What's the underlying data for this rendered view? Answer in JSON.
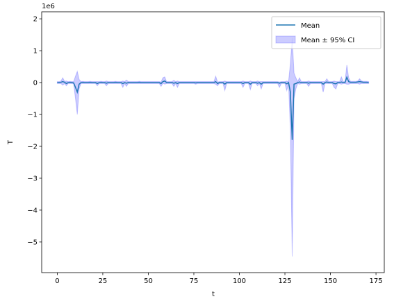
{
  "chart_data": {
    "type": "line",
    "x_label": "t",
    "y_label": "T",
    "y_offset_label": "1e6",
    "xlim": [
      -8.55,
      179.55
    ],
    "ylim": [
      -5.96,
      2.22
    ],
    "xticks": [
      0,
      25,
      50,
      75,
      100,
      125,
      150,
      175
    ],
    "yticks": [
      {
        "value": -5,
        "label": "−5"
      },
      {
        "value": -4,
        "label": "−4"
      },
      {
        "value": -3,
        "label": "−3"
      },
      {
        "value": -2,
        "label": "−2"
      },
      {
        "value": -1,
        "label": "−1"
      },
      0,
      1,
      2
    ],
    "legend": "upper right",
    "x": [
      0,
      1,
      2,
      3,
      4,
      5,
      6,
      7,
      8,
      9,
      10,
      11,
      12,
      13,
      14,
      15,
      16,
      17,
      18,
      19,
      20,
      21,
      22,
      23,
      24,
      25,
      26,
      27,
      28,
      29,
      30,
      31,
      32,
      33,
      34,
      35,
      36,
      37,
      38,
      39,
      40,
      41,
      42,
      43,
      44,
      45,
      46,
      47,
      48,
      49,
      50,
      51,
      52,
      53,
      54,
      55,
      56,
      57,
      58,
      59,
      60,
      61,
      62,
      63,
      64,
      65,
      66,
      67,
      68,
      69,
      70,
      71,
      72,
      73,
      74,
      75,
      76,
      77,
      78,
      79,
      80,
      81,
      82,
      83,
      84,
      85,
      86,
      87,
      88,
      89,
      90,
      91,
      92,
      93,
      94,
      95,
      96,
      97,
      98,
      99,
      100,
      101,
      102,
      103,
      104,
      105,
      106,
      107,
      108,
      109,
      110,
      111,
      112,
      113,
      114,
      115,
      116,
      117,
      118,
      119,
      120,
      121,
      122,
      123,
      124,
      125,
      126,
      127,
      128,
      129,
      130,
      131,
      132,
      133,
      134,
      135,
      136,
      137,
      138,
      139,
      140,
      141,
      142,
      143,
      144,
      145,
      146,
      147,
      148,
      149,
      150,
      151,
      152,
      153,
      154,
      155,
      156,
      157,
      158,
      159,
      160,
      161,
      162,
      163,
      164,
      165,
      166,
      167,
      168,
      169,
      170,
      171
    ],
    "series": [
      {
        "name": "Mean",
        "color": "#1f77b4",
        "values": [
          0,
          0,
          0.01,
          0.03,
          0.01,
          -0.03,
          0,
          0.01,
          0,
          -0.01,
          -0.15,
          -0.3,
          -0.05,
          0,
          0.01,
          0,
          0,
          0,
          0.01,
          0,
          0,
          0,
          -0.03,
          0,
          0.01,
          0,
          0,
          -0.02,
          0,
          0,
          0,
          0,
          0.01,
          0,
          0,
          0,
          -0.03,
          0,
          -0.02,
          0,
          0,
          0,
          0,
          0,
          0,
          0.01,
          0,
          0,
          0,
          0,
          0,
          0,
          0,
          0,
          0,
          0,
          0,
          -0.03,
          0.03,
          0.05,
          0,
          0,
          0,
          0,
          -0.02,
          0,
          -0.03,
          0,
          0,
          0,
          0,
          0,
          0,
          0,
          0,
          0,
          -0.01,
          0,
          0,
          0,
          0,
          0,
          0,
          0,
          0,
          0,
          0,
          0.03,
          -0.03,
          0,
          0,
          0,
          -0.05,
          0,
          0,
          0,
          0,
          0,
          0,
          0,
          0,
          0,
          -0.03,
          0,
          0,
          0,
          -0.05,
          0,
          0,
          0,
          -0.02,
          0,
          -0.05,
          0,
          0,
          0,
          0,
          0,
          0,
          0,
          0,
          0,
          -0.02,
          0,
          0,
          0,
          -0.04,
          0,
          -0.3,
          -1.8,
          -0.05,
          -0.03,
          0,
          0.02,
          0,
          0,
          0,
          0,
          -0.02,
          0,
          0,
          0,
          0,
          0,
          0,
          0,
          -0.05,
          0,
          0.02,
          0,
          0,
          0,
          -0.03,
          -0.04,
          0,
          0,
          0.02,
          0,
          0,
          0.17,
          0.03,
          0.01,
          0.01,
          0.01,
          0.01,
          0.02,
          0.03,
          0.02,
          0.01,
          0.01,
          0.01,
          0
        ]
      },
      {
        "name": "Mean ± 95% CI",
        "color": "#0000ff",
        "lower": [
          -0.03,
          -0.03,
          -0.03,
          -0.08,
          -0.03,
          -0.1,
          -0.03,
          -0.03,
          -0.03,
          -0.04,
          -0.5,
          -1.0,
          -0.2,
          -0.03,
          -0.03,
          -0.03,
          -0.03,
          -0.03,
          -0.03,
          -0.03,
          -0.03,
          -0.03,
          -0.1,
          -0.03,
          -0.03,
          -0.03,
          -0.03,
          -0.1,
          -0.03,
          -0.03,
          -0.03,
          -0.03,
          -0.03,
          -0.03,
          -0.03,
          -0.03,
          -0.15,
          -0.03,
          -0.12,
          -0.03,
          -0.03,
          -0.03,
          -0.03,
          -0.03,
          -0.03,
          -0.03,
          -0.03,
          -0.03,
          -0.03,
          -0.03,
          -0.03,
          -0.03,
          -0.03,
          -0.03,
          -0.03,
          -0.03,
          -0.03,
          -0.12,
          -0.02,
          -0.05,
          -0.03,
          -0.03,
          -0.03,
          -0.03,
          -0.12,
          -0.03,
          -0.15,
          -0.03,
          -0.03,
          -0.03,
          -0.03,
          -0.03,
          -0.03,
          -0.03,
          -0.03,
          -0.03,
          -0.05,
          -0.03,
          -0.03,
          -0.03,
          -0.03,
          -0.03,
          -0.03,
          -0.03,
          -0.03,
          -0.03,
          -0.03,
          -0.05,
          -0.1,
          -0.03,
          -0.03,
          -0.03,
          -0.25,
          -0.03,
          -0.03,
          -0.03,
          -0.03,
          -0.03,
          -0.03,
          -0.03,
          -0.03,
          -0.03,
          -0.15,
          -0.03,
          -0.03,
          -0.03,
          -0.22,
          -0.03,
          -0.03,
          -0.03,
          -0.1,
          -0.03,
          -0.2,
          -0.03,
          -0.03,
          -0.03,
          -0.03,
          -0.03,
          -0.03,
          -0.03,
          -0.03,
          -0.03,
          -0.15,
          -0.03,
          -0.03,
          -0.03,
          -0.25,
          -0.03,
          -1.5,
          -5.45,
          -0.5,
          -0.2,
          -0.03,
          -0.05,
          -0.03,
          -0.03,
          -0.03,
          -0.03,
          -0.12,
          -0.03,
          -0.03,
          -0.03,
          -0.03,
          -0.03,
          -0.03,
          -0.03,
          -0.3,
          -0.03,
          -0.03,
          -0.03,
          -0.03,
          -0.03,
          -0.15,
          -0.2,
          -0.03,
          -0.03,
          -0.05,
          -0.03,
          -0.03,
          -0.05,
          -0.05,
          -0.03,
          -0.03,
          -0.03,
          -0.03,
          -0.03,
          -0.05,
          -0.03,
          -0.03,
          -0.03,
          -0.03,
          -0.03
        ],
        "upper": [
          0.03,
          0.03,
          0.05,
          0.15,
          0.04,
          0.05,
          0.03,
          0.04,
          0.03,
          0.03,
          0.2,
          0.35,
          0.1,
          0.03,
          0.04,
          0.03,
          0.03,
          0.03,
          0.04,
          0.03,
          0.03,
          0.03,
          0.03,
          0.03,
          0.04,
          0.03,
          0.03,
          0.05,
          0.03,
          0.03,
          0.03,
          0.03,
          0.04,
          0.03,
          0.03,
          0.03,
          0.05,
          0.03,
          0.08,
          0.03,
          0.03,
          0.03,
          0.03,
          0.03,
          0.03,
          0.04,
          0.03,
          0.03,
          0.03,
          0.03,
          0.03,
          0.03,
          0.03,
          0.03,
          0.03,
          0.03,
          0.03,
          0.02,
          0.15,
          0.18,
          0.03,
          0.03,
          0.03,
          0.03,
          0.07,
          0.03,
          0.05,
          0.03,
          0.03,
          0.03,
          0.03,
          0.03,
          0.03,
          0.03,
          0.03,
          0.03,
          0.03,
          0.03,
          0.03,
          0.03,
          0.03,
          0.03,
          0.03,
          0.03,
          0.03,
          0.03,
          0.03,
          0.2,
          0.02,
          0.03,
          0.03,
          0.03,
          0.05,
          0.03,
          0.03,
          0.03,
          0.03,
          0.03,
          0.03,
          0.03,
          0.03,
          0.03,
          0.05,
          0.03,
          0.03,
          0.03,
          0.05,
          0.03,
          0.03,
          0.03,
          0.05,
          0.03,
          0.03,
          0.03,
          0.03,
          0.03,
          0.03,
          0.03,
          0.03,
          0.03,
          0.03,
          0.03,
          0.02,
          0.03,
          0.03,
          0.03,
          0.05,
          0.03,
          0.6,
          1.4,
          0.3,
          0.15,
          0.03,
          0.15,
          0.03,
          0.03,
          0.03,
          0.03,
          0.05,
          0.03,
          0.03,
          0.03,
          0.03,
          0.03,
          0.03,
          0.03,
          0.03,
          0.03,
          0.12,
          0.03,
          0.03,
          0.03,
          0.05,
          0.03,
          0.03,
          0.03,
          0.18,
          0.03,
          0.03,
          0.55,
          0.15,
          0.04,
          0.04,
          0.04,
          0.04,
          0.05,
          0.12,
          0.05,
          0.04,
          0.04,
          0.04,
          0.03
        ]
      }
    ]
  }
}
